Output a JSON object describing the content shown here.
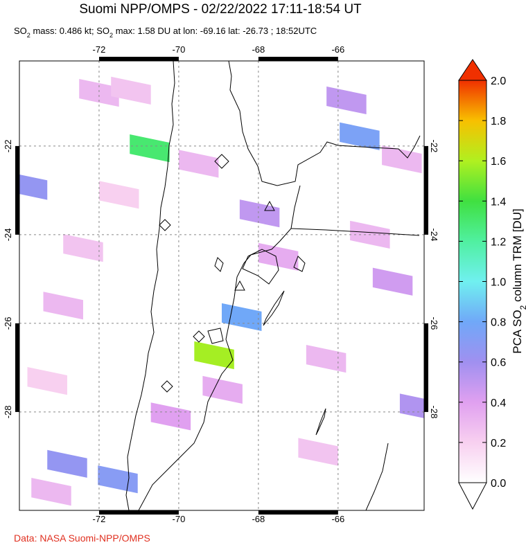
{
  "header": {
    "title": "Suomi NPP/OMPS - 02/22/2022 17:11-18:54 UT",
    "subtitle": [
      "SO",
      "2",
      " mass: 0.486 kt; SO",
      "2",
      " max: 1.58 DU at lon: -69.16 lat: -26.73 ; 18:52UTC"
    ]
  },
  "map": {
    "lon_range": [
      -74,
      -63.84
    ],
    "lat_range": [
      -20.08,
      -30.22
    ],
    "lon_ticks": [
      -72,
      -70,
      -68,
      -66
    ],
    "lat_ticks": [
      -22,
      -24,
      -26,
      -28
    ],
    "pixels": [
      {
        "lon": -70.73,
        "lat": -22.05,
        "value": 1.3
      },
      {
        "lon": -69.11,
        "lat": -26.72,
        "value": 1.58
      },
      {
        "lon": -68.42,
        "lat": -25.86,
        "value": 0.8
      },
      {
        "lon": -65.46,
        "lat": -21.78,
        "value": 0.75
      },
      {
        "lon": -67.97,
        "lat": -23.52,
        "value": 0.5
      },
      {
        "lon": -65.79,
        "lat": -20.97,
        "value": 0.5
      },
      {
        "lon": -72.8,
        "lat": -29.17,
        "value": 0.65
      },
      {
        "lon": -71.53,
        "lat": -29.52,
        "value": 0.7
      },
      {
        "lon": -73.8,
        "lat": -22.9,
        "value": 0.65
      },
      {
        "lon": -64.63,
        "lat": -25.06,
        "value": 0.45
      },
      {
        "lon": -63.95,
        "lat": -27.9,
        "value": 0.55
      },
      {
        "lon": -70.2,
        "lat": -28.1,
        "value": 0.4
      },
      {
        "lon": -68.9,
        "lat": -27.5,
        "value": 0.35
      },
      {
        "lon": -72.0,
        "lat": -20.8,
        "value": 0.3
      },
      {
        "lon": -71.2,
        "lat": -20.75,
        "value": 0.25
      },
      {
        "lon": -69.5,
        "lat": -22.4,
        "value": 0.3
      },
      {
        "lon": -65.2,
        "lat": -24.0,
        "value": 0.3
      },
      {
        "lon": -67.5,
        "lat": -24.5,
        "value": 0.35
      },
      {
        "lon": -72.9,
        "lat": -25.6,
        "value": 0.3
      },
      {
        "lon": -72.4,
        "lat": -24.3,
        "value": 0.25
      },
      {
        "lon": -66.3,
        "lat": -26.8,
        "value": 0.3
      },
      {
        "lon": -64.4,
        "lat": -22.3,
        "value": 0.3
      },
      {
        "lon": -71.5,
        "lat": -23.1,
        "value": 0.2
      },
      {
        "lon": -73.3,
        "lat": -27.3,
        "value": 0.2
      },
      {
        "lon": -66.5,
        "lat": -28.9,
        "value": 0.25
      },
      {
        "lon": -73.2,
        "lat": -29.8,
        "value": 0.3
      }
    ]
  },
  "colorbar": {
    "label": [
      "PCA SO",
      "2",
      " column TRM [DU]"
    ],
    "range": [
      0,
      2
    ],
    "colors": [
      "#ffffff",
      "#f8d0f0",
      "#e0a0f0",
      "#a090f0",
      "#70a8f8",
      "#70f0f0",
      "#50f0a0",
      "#40e040",
      "#b0f020",
      "#f8c000",
      "#f03000"
    ],
    "ticks": [
      {
        "value": 0,
        "label": "0.0"
      },
      {
        "value": 0.2,
        "label": "0.2"
      },
      {
        "value": 0.4,
        "label": "0.4"
      },
      {
        "value": 0.6,
        "label": "0.6"
      },
      {
        "value": 0.8,
        "label": "0.8"
      },
      {
        "value": 1,
        "label": "1.0"
      },
      {
        "value": 1.2,
        "label": "1.2"
      },
      {
        "value": 1.4,
        "label": "1.4"
      },
      {
        "value": 1.6,
        "label": "1.6"
      },
      {
        "value": 1.8,
        "label": "1.8"
      },
      {
        "value": 2,
        "label": "2.0"
      }
    ]
  },
  "footer": {
    "source": "Data: NASA Suomi-NPP/OMPS"
  }
}
